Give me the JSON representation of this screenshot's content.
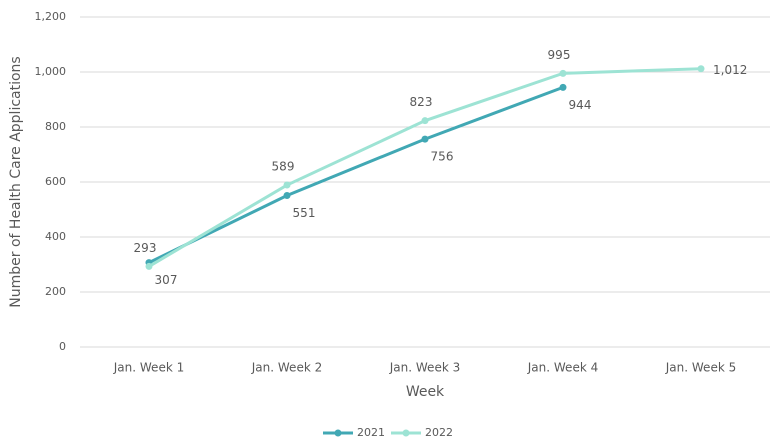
{
  "chart_data": {
    "type": "line",
    "x_label": "Week",
    "y_label": "Number of Health Care Applications",
    "categories": [
      "Jan. Week 1",
      "Jan. Week 2",
      "Jan. Week 3",
      "Jan. Week 4",
      "Jan. Week 5"
    ],
    "series": [
      {
        "name": "2021",
        "color": "#41a8b4",
        "values": [
          307,
          551,
          756,
          944,
          null
        ]
      },
      {
        "name": "2022",
        "color": "#9de3d4",
        "values": [
          293,
          589,
          823,
          995,
          1012
        ],
        "value_labels": [
          "293",
          "589",
          "823",
          "995",
          "1,012"
        ]
      }
    ],
    "ylim": [
      0,
      1200
    ],
    "yticks": [
      0,
      200,
      400,
      600,
      800,
      {
        "value": 1000,
        "label": "1,000"
      },
      {
        "value": 1200,
        "label": "1,200"
      }
    ],
    "grid": true,
    "legend": "bottom"
  }
}
